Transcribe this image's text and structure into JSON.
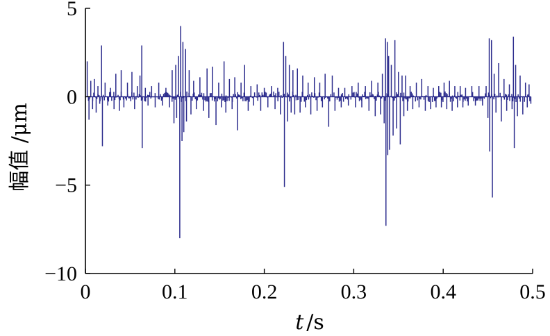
{
  "chart_data": {
    "type": "line",
    "title": "",
    "xlabel_italic": "t",
    "xlabel_unit": "/s",
    "ylabel": "幅值 /μm",
    "xlim": [
      0,
      0.5
    ],
    "ylim": [
      -10,
      5
    ],
    "xticks": [
      0,
      0.1,
      0.2,
      0.3,
      0.4,
      0.5
    ],
    "xtick_labels": [
      "0",
      "0.1",
      "0.2",
      "0.3",
      "0.4",
      "0.5"
    ],
    "yticks": [
      5,
      0,
      -5,
      -10
    ],
    "ytick_labels": [
      "5",
      "0",
      "−5",
      "−10"
    ],
    "grid": false,
    "line_color": "#2b2b8c",
    "series": [
      {
        "values": [
          [
            0.002,
            2.0
          ],
          [
            0.004,
            -1.3
          ],
          [
            0.006,
            0.9
          ],
          [
            0.008,
            -0.7
          ],
          [
            0.01,
            1.0
          ],
          [
            0.012,
            -0.9
          ],
          [
            0.014,
            0.6
          ],
          [
            0.016,
            -0.4
          ],
          [
            0.018,
            2.9
          ],
          [
            0.019,
            -2.8
          ],
          [
            0.022,
            0.8
          ],
          [
            0.025,
            -0.5
          ],
          [
            0.028,
            0.5
          ],
          [
            0.032,
            -0.7
          ],
          [
            0.034,
            1.3
          ],
          [
            0.038,
            -0.8
          ],
          [
            0.04,
            1.5
          ],
          [
            0.043,
            -0.6
          ],
          [
            0.047,
            0.8
          ],
          [
            0.052,
            1.4
          ],
          [
            0.055,
            -0.7
          ],
          [
            0.058,
            0.6
          ],
          [
            0.061,
            1.2
          ],
          [
            0.063,
            2.9
          ],
          [
            0.0635,
            -2.9
          ],
          [
            0.067,
            0.5
          ],
          [
            0.07,
            -0.5
          ],
          [
            0.074,
            0.6
          ],
          [
            0.078,
            -0.6
          ],
          [
            0.082,
            0.8
          ],
          [
            0.086,
            -0.5
          ],
          [
            0.09,
            0.5
          ],
          [
            0.094,
            -0.6
          ],
          [
            0.097,
            1.5
          ],
          [
            0.099,
            -1.5
          ],
          [
            0.101,
            1.8
          ],
          [
            0.102,
            -1.2
          ],
          [
            0.104,
            2.3
          ],
          [
            0.1055,
            -8.0
          ],
          [
            0.1065,
            4.0
          ],
          [
            0.108,
            -2.5
          ],
          [
            0.109,
            3.1
          ],
          [
            0.11,
            -2.0
          ],
          [
            0.112,
            2.7
          ],
          [
            0.113,
            -1.4
          ],
          [
            0.116,
            1.5
          ],
          [
            0.118,
            -1.0
          ],
          [
            0.121,
            0.9
          ],
          [
            0.124,
            -0.7
          ],
          [
            0.128,
            1.1
          ],
          [
            0.132,
            -0.8
          ],
          [
            0.136,
            1.6
          ],
          [
            0.138,
            -1.2
          ],
          [
            0.142,
            1.7
          ],
          [
            0.146,
            -1.6
          ],
          [
            0.149,
            0.8
          ],
          [
            0.152,
            -0.6
          ],
          [
            0.155,
            2.0
          ],
          [
            0.157,
            -0.9
          ],
          [
            0.161,
            1.0
          ],
          [
            0.164,
            -0.7
          ],
          [
            0.167,
            1.1
          ],
          [
            0.17,
            -1.9
          ],
          [
            0.174,
            0.8
          ],
          [
            0.178,
            1.8
          ],
          [
            0.182,
            -0.8
          ],
          [
            0.185,
            0.6
          ],
          [
            0.188,
            -0.5
          ],
          [
            0.192,
            0.7
          ],
          [
            0.196,
            -0.8
          ],
          [
            0.2,
            0.5
          ],
          [
            0.204,
            -0.6
          ],
          [
            0.208,
            0.6
          ],
          [
            0.212,
            -0.7
          ],
          [
            0.215,
            0.5
          ],
          [
            0.218,
            -1.0
          ],
          [
            0.2215,
            3.1
          ],
          [
            0.2225,
            -5.1
          ],
          [
            0.224,
            2.3
          ],
          [
            0.226,
            -1.4
          ],
          [
            0.228,
            1.8
          ],
          [
            0.23,
            -0.9
          ],
          [
            0.232,
            1.5
          ],
          [
            0.234,
            -1.0
          ],
          [
            0.237,
            1.6
          ],
          [
            0.24,
            -0.9
          ],
          [
            0.243,
            1.2
          ],
          [
            0.246,
            -0.6
          ],
          [
            0.249,
            0.8
          ],
          [
            0.252,
            -1.0
          ],
          [
            0.256,
            1.1
          ],
          [
            0.259,
            -0.8
          ],
          [
            0.262,
            0.8
          ],
          [
            0.265,
            -0.6
          ],
          [
            0.268,
            1.3
          ],
          [
            0.272,
            -1.7
          ],
          [
            0.276,
            1.2
          ],
          [
            0.279,
            -0.8
          ],
          [
            0.283,
            0.5
          ],
          [
            0.286,
            -0.6
          ],
          [
            0.29,
            0.5
          ],
          [
            0.294,
            -0.5
          ],
          [
            0.298,
            0.6
          ],
          [
            0.302,
            -0.6
          ],
          [
            0.305,
            0.8
          ],
          [
            0.309,
            -0.6
          ],
          [
            0.313,
            0.6
          ],
          [
            0.317,
            -0.8
          ],
          [
            0.32,
            0.9
          ],
          [
            0.324,
            -1.1
          ],
          [
            0.327,
            0.8
          ],
          [
            0.33,
            -1.0
          ],
          [
            0.332,
            1.3
          ],
          [
            0.334,
            -1.5
          ],
          [
            0.3355,
            3.3
          ],
          [
            0.336,
            -7.3
          ],
          [
            0.3375,
            3.1
          ],
          [
            0.338,
            -3.3
          ],
          [
            0.339,
            2.3
          ],
          [
            0.34,
            -3.0
          ],
          [
            0.342,
            1.8
          ],
          [
            0.344,
            -2.2
          ],
          [
            0.346,
            3.2
          ],
          [
            0.348,
            -1.8
          ],
          [
            0.35,
            1.4
          ],
          [
            0.352,
            -2.7
          ],
          [
            0.354,
            1.2
          ],
          [
            0.356,
            -1.1
          ],
          [
            0.358,
            1.2
          ],
          [
            0.36,
            -0.8
          ],
          [
            0.363,
            0.6
          ],
          [
            0.366,
            -0.7
          ],
          [
            0.37,
            0.8
          ],
          [
            0.373,
            -0.6
          ],
          [
            0.376,
            1.0
          ],
          [
            0.38,
            -0.8
          ],
          [
            0.383,
            0.6
          ],
          [
            0.386,
            -0.7
          ],
          [
            0.389,
            0.5
          ],
          [
            0.392,
            -0.6
          ],
          [
            0.395,
            0.6
          ],
          [
            0.398,
            -0.6
          ],
          [
            0.401,
            0.8
          ],
          [
            0.404,
            -0.7
          ],
          [
            0.407,
            0.9
          ],
          [
            0.41,
            -0.8
          ],
          [
            0.413,
            0.6
          ],
          [
            0.416,
            -0.6
          ],
          [
            0.419,
            0.6
          ],
          [
            0.422,
            -0.6
          ],
          [
            0.425,
            0.5
          ],
          [
            0.428,
            -0.5
          ],
          [
            0.432,
            0.6
          ],
          [
            0.436,
            -0.5
          ],
          [
            0.44,
            0.6
          ],
          [
            0.444,
            -0.5
          ],
          [
            0.448,
            0.6
          ],
          [
            0.45,
            -1.2
          ],
          [
            0.4515,
            3.3
          ],
          [
            0.452,
            -3.1
          ],
          [
            0.454,
            3.2
          ],
          [
            0.455,
            -5.7
          ],
          [
            0.457,
            1.3
          ],
          [
            0.459,
            -0.9
          ],
          [
            0.462,
            1.9
          ],
          [
            0.465,
            -1.4
          ],
          [
            0.468,
            1.0
          ],
          [
            0.471,
            -0.8
          ],
          [
            0.474,
            0.7
          ],
          [
            0.477,
            -0.7
          ],
          [
            0.4785,
            3.4
          ],
          [
            0.4795,
            -2.9
          ],
          [
            0.481,
            1.8
          ],
          [
            0.483,
            -1.1
          ],
          [
            0.486,
            1.2
          ],
          [
            0.489,
            -1.0
          ],
          [
            0.492,
            0.8
          ],
          [
            0.494,
            -0.6
          ],
          [
            0.496,
            0.7
          ],
          [
            0.498,
            -0.4
          ]
        ]
      }
    ]
  }
}
